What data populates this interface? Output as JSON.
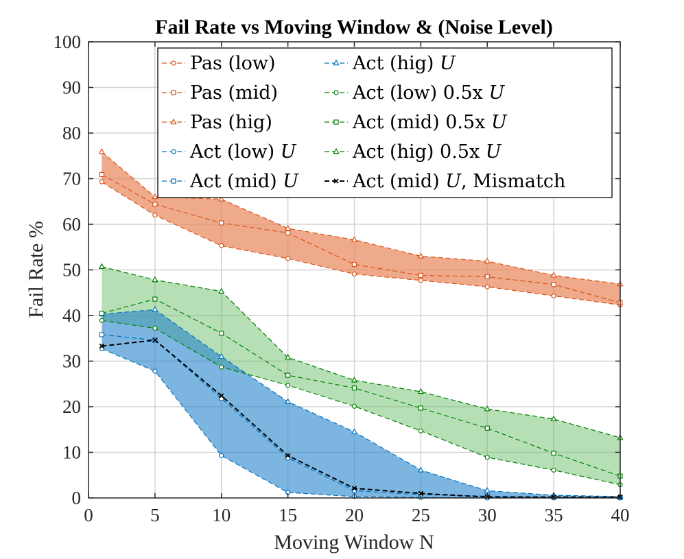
{
  "chart_data": {
    "type": "line",
    "title": "Fail Rate vs Moving Window & (Noise Level)",
    "xlabel": "Moving Window N",
    "ylabel": "Fail Rate %",
    "xlim": [
      0,
      40
    ],
    "ylim": [
      0,
      100
    ],
    "xticks": [
      0,
      5,
      10,
      15,
      20,
      25,
      30,
      35,
      40
    ],
    "yticks": [
      0,
      10,
      20,
      30,
      40,
      50,
      60,
      70,
      80,
      90,
      100
    ],
    "grid": true,
    "legend_position": "top-right",
    "x": [
      1,
      5,
      10,
      15,
      20,
      25,
      30,
      35,
      40
    ],
    "colors": {
      "pas": "#D95319",
      "act": "#0072BD",
      "act_half": "#008000",
      "mismatch": "#000000"
    },
    "bands": [
      {
        "name": "Pas band",
        "lower": "Pas (low)",
        "upper": "Pas (hig)",
        "fill": "#E8845A",
        "opacity": 0.7
      },
      {
        "name": "Act half band",
        "lower": "Act (low) 0.5x U",
        "upper": "Act (hig) 0.5x U",
        "fill": "#5DB85D",
        "opacity": 0.45
      },
      {
        "name": "Act band",
        "lower": "Act (low) U",
        "upper": "Act (hig) U",
        "fill": "#1F7FCC",
        "opacity": 0.58
      }
    ],
    "series": [
      {
        "name": "Pas (low)",
        "label": "Pas (low)",
        "label_italic": "",
        "label_after": "",
        "color": "#D95319",
        "marker": "circle",
        "values": [
          69.3,
          62.0,
          55.3,
          52.5,
          49.1,
          47.7,
          46.3,
          44.3,
          42.3
        ]
      },
      {
        "name": "Pas (mid)",
        "label": "Pas (mid)",
        "label_italic": "",
        "label_after": "",
        "color": "#D95319",
        "marker": "square",
        "values": [
          70.9,
          64.4,
          60.3,
          58.1,
          51.2,
          48.8,
          48.5,
          46.8,
          42.8
        ]
      },
      {
        "name": "Pas (hig)",
        "label": "Pas (hig)",
        "label_italic": "",
        "label_after": "",
        "color": "#D95319",
        "marker": "triangle",
        "values": [
          75.9,
          66.0,
          65.5,
          59.1,
          56.6,
          53.0,
          51.9,
          48.8,
          46.9
        ]
      },
      {
        "name": "Act (low) U",
        "label": "Act (low) ",
        "label_italic": "U",
        "label_after": "",
        "color": "#0072BD",
        "marker": "circle",
        "values": [
          32.7,
          27.8,
          9.3,
          1.2,
          0.3,
          0.1,
          0.0,
          0.0,
          0.0
        ]
      },
      {
        "name": "Act (mid) U",
        "label": "Act (mid) ",
        "label_italic": "U",
        "label_after": "",
        "color": "#0072BD",
        "marker": "square",
        "values": [
          35.8,
          34.6,
          21.8,
          8.8,
          1.6,
          0.7,
          0.4,
          0.2,
          0.1
        ]
      },
      {
        "name": "Act (hig) U",
        "label": "Act (hig) ",
        "label_italic": "U",
        "label_after": "",
        "color": "#0072BD",
        "marker": "triangle",
        "values": [
          40.3,
          41.3,
          31.0,
          21.1,
          14.5,
          6.1,
          1.6,
          0.6,
          0.3
        ]
      },
      {
        "name": "Act (low) 0.5x U",
        "label": "Act (low) 0.5x ",
        "label_italic": "U",
        "label_after": "",
        "color": "#008000",
        "marker": "circle",
        "values": [
          38.9,
          37.2,
          28.7,
          24.7,
          20.1,
          14.7,
          8.9,
          6.1,
          2.9
        ]
      },
      {
        "name": "Act (mid) 0.5x U",
        "label": "Act (mid) 0.5x ",
        "label_italic": "U",
        "label_after": "",
        "color": "#008000",
        "marker": "square",
        "values": [
          40.5,
          43.6,
          36.1,
          26.9,
          24.1,
          19.7,
          15.3,
          9.8,
          4.8
        ]
      },
      {
        "name": "Act (hig) 0.5x U",
        "label": "Act (hig) 0.5x ",
        "label_italic": "U",
        "label_after": "",
        "color": "#008000",
        "marker": "triangle",
        "values": [
          50.7,
          47.8,
          45.3,
          30.8,
          25.8,
          23.3,
          19.5,
          17.3,
          13.2
        ]
      },
      {
        "name": "Act (mid) U, Mismatch",
        "label": "Act (mid) ",
        "label_italic": "U",
        "label_after": ", Mismatch",
        "color": "#000000",
        "marker": "x",
        "values": [
          33.3,
          34.6,
          22.4,
          9.3,
          2.1,
          1.0,
          0.2,
          0.2,
          0.2
        ]
      }
    ]
  }
}
